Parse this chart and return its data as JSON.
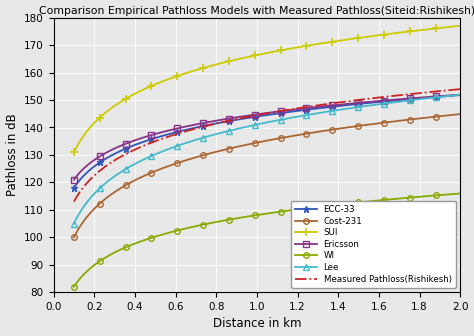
{
  "title": "Comparison Empirical Pathloss Models with Measured Pathloss(Siteid:Rishikesh)",
  "xlabel": "Distance in km",
  "ylabel": "Pathloss in dB",
  "xlim": [
    0,
    2.0
  ],
  "ylim": [
    80,
    180
  ],
  "xticks": [
    0,
    0.2,
    0.4,
    0.6,
    0.8,
    1.0,
    1.2,
    1.4,
    1.6,
    1.8,
    2.0
  ],
  "yticks": [
    80,
    90,
    100,
    110,
    120,
    130,
    140,
    150,
    160,
    170,
    180
  ],
  "colors": {
    "ECC33": "#3355BB",
    "Cost231": "#AA6633",
    "SUI": "#CCCC00",
    "Ericsson": "#883388",
    "WI": "#88AA00",
    "Lee": "#44BBCC",
    "Measured": "#CC2222"
  },
  "legend_loc": "lower right",
  "figsize": [
    4.74,
    3.36
  ],
  "dpi": 100,
  "background_color": "#E8E8E8",
  "ECC33_p0": 118.0,
  "ECC33_slope": 17.0,
  "Cost231_p0": 100.0,
  "Cost231_slope": 24.0,
  "SUI_p0": 131.0,
  "SUI_slope": 25.0,
  "Ericsson_p0": 121.0,
  "Ericsson_slope": 16.5,
  "WI_p0": 82.0,
  "WI_slope": 17.5,
  "Lee_p0": 105.0,
  "Lee_slope": 24.0,
  "Meas_p0": 113.0,
  "Meas_slope": 22.0
}
